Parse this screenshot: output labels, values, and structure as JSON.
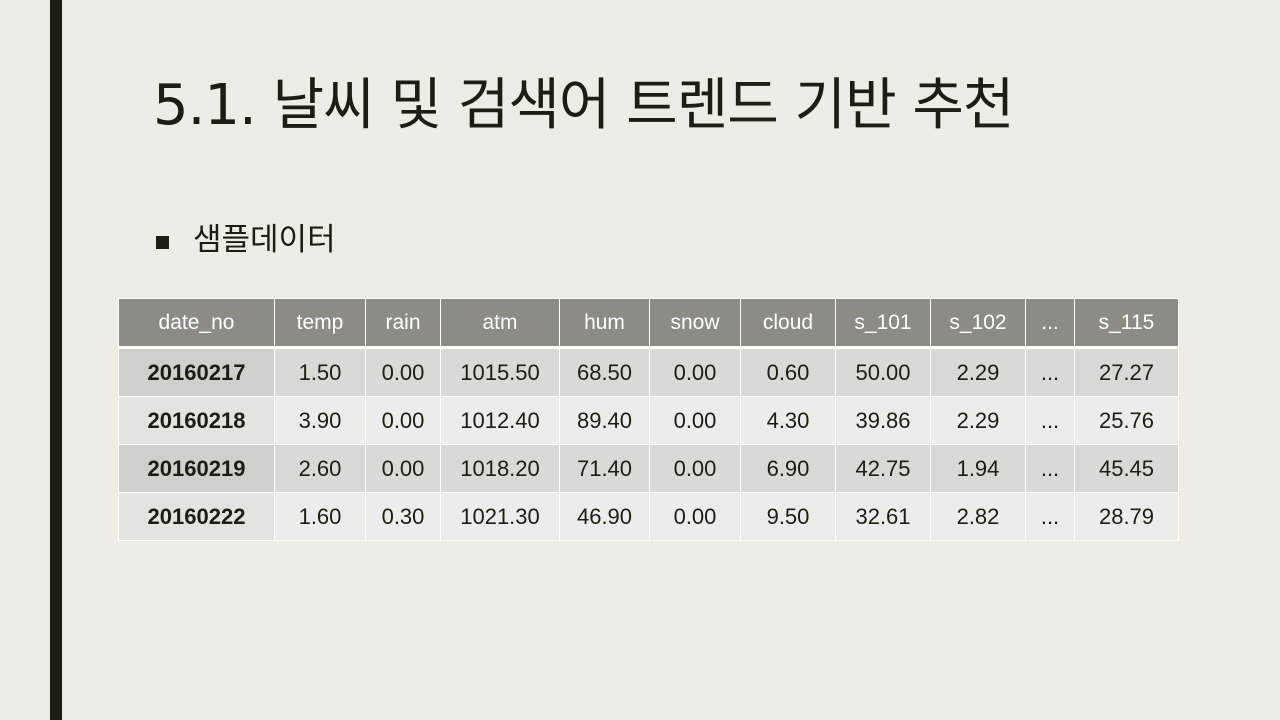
{
  "slide": {
    "title": "5.1.  날씨 및 검색어 트렌드 기반 추천",
    "bullet": "샘플데이터",
    "colors": {
      "background": "#efece5",
      "accent_bar": "#1d1d13",
      "header_fill": "#8c8c85"
    }
  },
  "table": {
    "headers": [
      "date_no",
      "temp",
      "rain",
      "atm",
      "hum",
      "snow",
      "cloud",
      "s_101",
      "s_102",
      "...",
      "s_115"
    ],
    "rows": [
      [
        "20160217",
        "1.50",
        "0.00",
        "1015.50",
        "68.50",
        "0.00",
        "0.60",
        "50.00",
        "2.29",
        "...",
        "27.27"
      ],
      [
        "20160218",
        "3.90",
        "0.00",
        "1012.40",
        "89.40",
        "0.00",
        "4.30",
        "39.86",
        "2.29",
        "...",
        "25.76"
      ],
      [
        "20160219",
        "2.60",
        "0.00",
        "1018.20",
        "71.40",
        "0.00",
        "6.90",
        "42.75",
        "1.94",
        "...",
        "45.45"
      ],
      [
        "20160222",
        "1.60",
        "0.30",
        "1021.30",
        "46.90",
        "0.00",
        "9.50",
        "32.61",
        "2.82",
        "...",
        "28.79"
      ]
    ]
  }
}
